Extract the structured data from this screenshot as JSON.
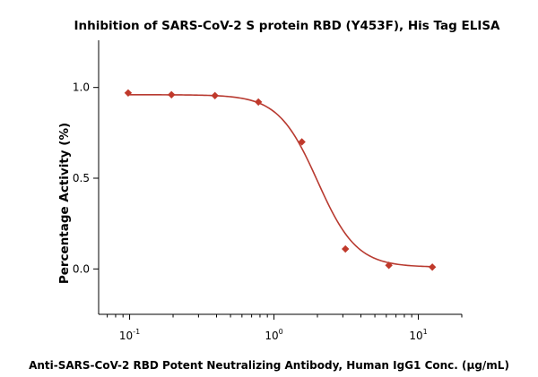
{
  "chart_data": {
    "type": "scatter",
    "title": "Inhibition of SARS-CoV-2 S protein RBD (Y453F), His Tag ELISA",
    "xlabel": "Anti-SARS-CoV-2 RBD Potent Neutralizing Antibody, Human IgG1 Conc. (μg/mL)",
    "ylabel": "Percentage Activity (%)",
    "x_scale": "log",
    "xlim": [
      0.061,
      20
    ],
    "ylim": [
      -0.25,
      1.26
    ],
    "x_ticks": [
      {
        "value": 0.1,
        "base": "10",
        "exp": "-1"
      },
      {
        "value": 1,
        "base": "10",
        "exp": "0"
      },
      {
        "value": 10,
        "base": "10",
        "exp": "1"
      }
    ],
    "y_ticks": [
      {
        "value": 0.0,
        "label": "0.0"
      },
      {
        "value": 0.5,
        "label": "0.5"
      },
      {
        "value": 1.0,
        "label": "1.0"
      }
    ],
    "marker_color": "#c0392b",
    "curve_color": "#b83a30",
    "series": [
      {
        "x": [
          0.0977,
          0.195,
          0.39,
          0.78,
          1.56,
          3.125,
          6.25,
          12.5
        ],
        "y": [
          0.97,
          0.96,
          0.955,
          0.92,
          0.7,
          0.11,
          0.02,
          0.01
        ]
      }
    ],
    "fit_curve": {
      "model": "4PL",
      "top": 0.96,
      "bottom": 0.01,
      "ec50": 2.0,
      "hill": 3.2
    }
  }
}
